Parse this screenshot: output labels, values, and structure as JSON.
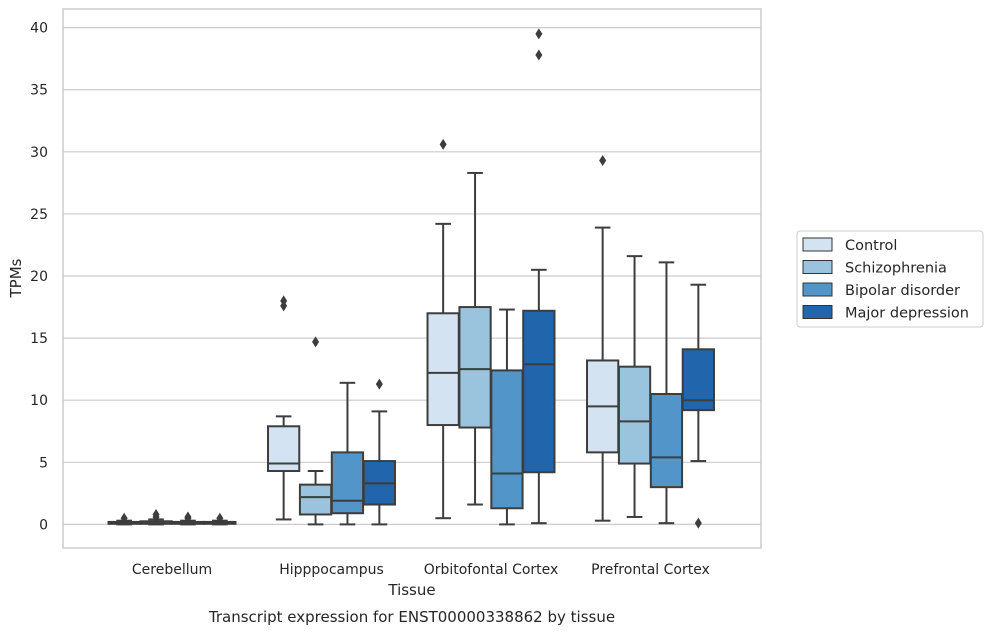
{
  "chart_data": {
    "type": "box",
    "title": "Transcript expression for ENST00000338862 by tissue",
    "xlabel": "Tissue",
    "ylabel": "TPMs",
    "ylim": [
      -1.9,
      41.5
    ],
    "yticks": [
      0,
      5,
      10,
      15,
      20,
      25,
      30,
      35,
      40
    ],
    "grid": "horizontal",
    "legend_position": "right",
    "categories": [
      "Cerebellum",
      "Hipppocampus",
      "Orbitofontal Cortex",
      "Prefrontal Cortex"
    ],
    "series": [
      {
        "name": "Control",
        "color": "#d3e3f2",
        "boxes": [
          {
            "whislo": 0.0,
            "q1": 0.05,
            "med": 0.1,
            "q3": 0.2,
            "whishi": 0.3,
            "fliers": [
              0.5
            ]
          },
          {
            "whislo": 0.4,
            "q1": 4.3,
            "med": 4.9,
            "q3": 7.9,
            "whishi": 8.7,
            "fliers": [
              17.6,
              18.0
            ]
          },
          {
            "whislo": 0.5,
            "q1": 8.0,
            "med": 12.2,
            "q3": 17.0,
            "whishi": 24.2,
            "fliers": [
              30.6
            ]
          },
          {
            "whislo": 0.3,
            "q1": 5.8,
            "med": 9.5,
            "q3": 13.2,
            "whishi": 23.9,
            "fliers": [
              29.3
            ]
          }
        ]
      },
      {
        "name": "Schizophrenia",
        "color": "#9ac3dd",
        "boxes": [
          {
            "whislo": 0.0,
            "q1": 0.05,
            "med": 0.1,
            "q3": 0.25,
            "whishi": 0.4,
            "fliers": [
              0.6,
              0.8
            ]
          },
          {
            "whislo": 0.0,
            "q1": 0.8,
            "med": 2.2,
            "q3": 3.2,
            "whishi": 4.3,
            "fliers": [
              14.7
            ]
          },
          {
            "whislo": 1.6,
            "q1": 7.8,
            "med": 12.5,
            "q3": 17.5,
            "whishi": 28.3,
            "fliers": []
          },
          {
            "whislo": 0.6,
            "q1": 4.9,
            "med": 8.3,
            "q3": 12.7,
            "whishi": 21.6,
            "fliers": []
          }
        ]
      },
      {
        "name": "Bipolar disorder",
        "color": "#5295c8",
        "boxes": [
          {
            "whislo": 0.0,
            "q1": 0.05,
            "med": 0.1,
            "q3": 0.2,
            "whishi": 0.3,
            "fliers": [
              0.5,
              0.6
            ]
          },
          {
            "whislo": 0.0,
            "q1": 0.9,
            "med": 1.9,
            "q3": 5.8,
            "whishi": 11.4,
            "fliers": []
          },
          {
            "whislo": 0.0,
            "q1": 1.3,
            "med": 4.1,
            "q3": 12.4,
            "whishi": 17.3,
            "fliers": []
          },
          {
            "whislo": 0.1,
            "q1": 3.0,
            "med": 5.4,
            "q3": 10.5,
            "whishi": 21.1,
            "fliers": []
          }
        ]
      },
      {
        "name": "Major depression",
        "color": "#2166ac",
        "boxes": [
          {
            "whislo": 0.0,
            "q1": 0.05,
            "med": 0.1,
            "q3": 0.2,
            "whishi": 0.3,
            "fliers": [
              0.5
            ]
          },
          {
            "whislo": 0.0,
            "q1": 1.6,
            "med": 3.3,
            "q3": 5.1,
            "whishi": 9.1,
            "fliers": [
              11.3
            ]
          },
          {
            "whislo": 0.1,
            "q1": 4.2,
            "med": 12.9,
            "q3": 17.2,
            "whishi": 20.5,
            "fliers": [
              37.8,
              39.5
            ]
          },
          {
            "whislo": 5.1,
            "q1": 9.2,
            "med": 10.0,
            "q3": 14.1,
            "whishi": 19.3,
            "fliers": [
              0.1
            ]
          }
        ]
      }
    ]
  }
}
